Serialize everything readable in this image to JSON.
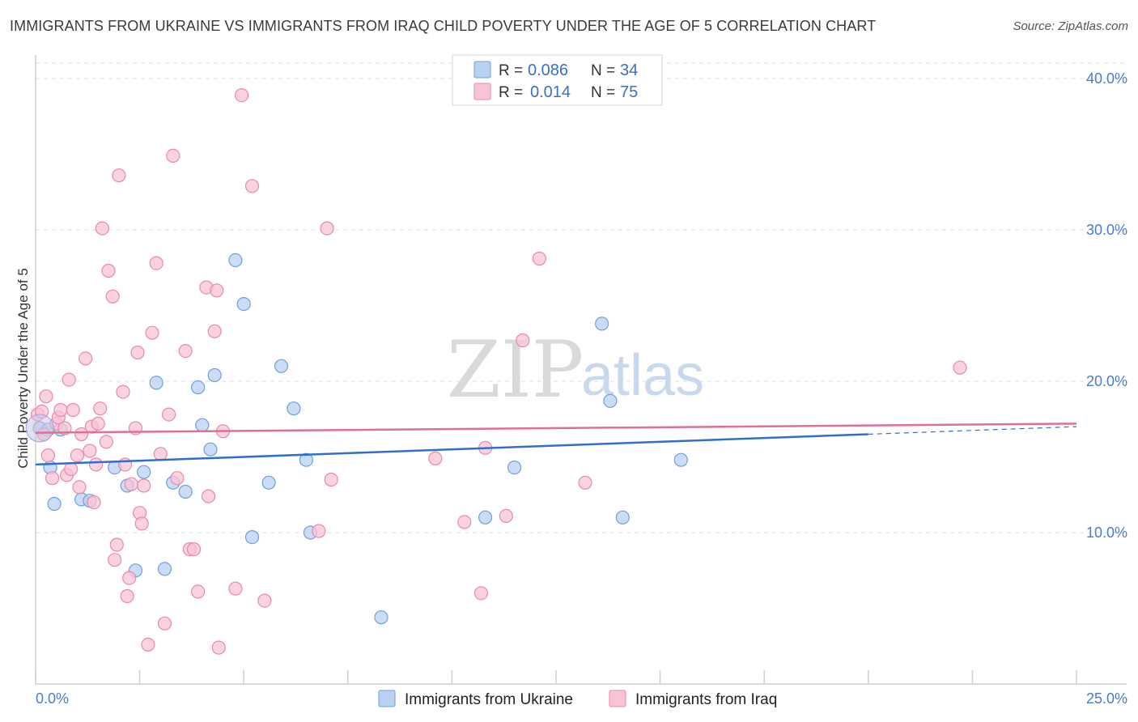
{
  "chart_data": {
    "type": "scatter",
    "title": "IMMIGRANTS FROM UKRAINE VS IMMIGRANTS FROM IRAQ CHILD POVERTY UNDER THE AGE OF 5 CORRELATION CHART",
    "source": "Source: ZipAtlas.com",
    "xlabel": "",
    "ylabel": "Child Poverty Under the Age of 5",
    "xlim": [
      0,
      25
    ],
    "ylim": [
      0,
      40
    ],
    "x_tick_labels": {
      "min": "0.0%",
      "max": "25.0%"
    },
    "y_ticks": [
      {
        "value": 10,
        "label": "10.0%"
      },
      {
        "value": 20,
        "label": "20.0%"
      },
      {
        "value": 30,
        "label": "30.0%"
      },
      {
        "value": 40,
        "label": "40.0%"
      }
    ],
    "watermark": {
      "zip": "ZIP",
      "atlas": "atlas"
    },
    "stats_legend": [
      {
        "r_label": "R = ",
        "r_value": "0.086",
        "n_label": "N = ",
        "n_value": "34"
      },
      {
        "r_label": "R = ",
        "r_value": "0.014",
        "n_label": "N = ",
        "n_value": "75"
      }
    ],
    "series": [
      {
        "name": "Immigrants from Ukraine",
        "color": "#6f9fdc",
        "fill": "#b9d2f3",
        "trend": {
          "x0": 0,
          "y0": 14.5,
          "x1": 20,
          "y1": 16.5,
          "dash_to_x": 25,
          "dash_to_y": 17.0,
          "color": "#2f6fcc"
        },
        "points": [
          [
            0.1,
            16.9
          ],
          [
            0.3,
            16.8
          ],
          [
            0.35,
            14.3
          ],
          [
            0.45,
            11.9
          ],
          [
            0.6,
            16.8
          ],
          [
            1.1,
            12.2
          ],
          [
            1.3,
            12.1
          ],
          [
            1.9,
            14.3
          ],
          [
            2.2,
            13.1
          ],
          [
            2.4,
            7.5
          ],
          [
            2.6,
            14.0
          ],
          [
            2.9,
            19.9
          ],
          [
            3.1,
            7.6
          ],
          [
            3.3,
            13.3
          ],
          [
            3.6,
            12.7
          ],
          [
            3.9,
            19.6
          ],
          [
            4.0,
            17.1
          ],
          [
            4.2,
            15.5
          ],
          [
            4.3,
            20.4
          ],
          [
            4.8,
            28.0
          ],
          [
            5.0,
            25.1
          ],
          [
            5.2,
            9.7
          ],
          [
            5.6,
            13.3
          ],
          [
            5.9,
            21.0
          ],
          [
            6.2,
            18.2
          ],
          [
            6.5,
            14.8
          ],
          [
            6.6,
            10.0
          ],
          [
            8.3,
            4.4
          ],
          [
            10.8,
            11.0
          ],
          [
            11.5,
            14.3
          ],
          [
            13.6,
            23.8
          ],
          [
            13.8,
            18.7
          ],
          [
            14.1,
            11.0
          ],
          [
            15.5,
            14.8
          ]
        ]
      },
      {
        "name": "Immigrants from Iraq",
        "color": "#e889aa",
        "fill": "#f8c3d5",
        "trend": {
          "x0": 0,
          "y0": 16.6,
          "x1": 25,
          "y1": 17.2,
          "color": "#e0708f"
        },
        "points": [
          [
            0.05,
            17.8
          ],
          [
            0.15,
            18.0
          ],
          [
            0.2,
            16.5
          ],
          [
            0.25,
            19.0
          ],
          [
            0.3,
            15.1
          ],
          [
            0.4,
            13.6
          ],
          [
            0.5,
            17.2
          ],
          [
            0.55,
            17.6
          ],
          [
            0.6,
            18.1
          ],
          [
            0.7,
            16.9
          ],
          [
            0.75,
            13.8
          ],
          [
            0.8,
            20.1
          ],
          [
            0.85,
            14.2
          ],
          [
            0.9,
            18.1
          ],
          [
            1.0,
            15.1
          ],
          [
            1.05,
            13.0
          ],
          [
            1.1,
            16.5
          ],
          [
            1.2,
            21.5
          ],
          [
            1.3,
            15.4
          ],
          [
            1.35,
            17.0
          ],
          [
            1.4,
            12.0
          ],
          [
            1.45,
            14.5
          ],
          [
            1.5,
            17.2
          ],
          [
            1.55,
            18.2
          ],
          [
            1.6,
            30.1
          ],
          [
            1.7,
            16.0
          ],
          [
            1.75,
            27.3
          ],
          [
            1.85,
            25.6
          ],
          [
            1.9,
            8.2
          ],
          [
            1.95,
            9.2
          ],
          [
            2.0,
            33.6
          ],
          [
            2.1,
            19.3
          ],
          [
            2.15,
            14.5
          ],
          [
            2.2,
            5.8
          ],
          [
            2.25,
            7.0
          ],
          [
            2.3,
            13.2
          ],
          [
            2.4,
            16.9
          ],
          [
            2.45,
            21.9
          ],
          [
            2.5,
            11.3
          ],
          [
            2.55,
            10.6
          ],
          [
            2.6,
            13.1
          ],
          [
            2.7,
            2.6
          ],
          [
            2.8,
            23.2
          ],
          [
            2.9,
            27.8
          ],
          [
            3.0,
            15.2
          ],
          [
            3.1,
            4.0
          ],
          [
            3.2,
            17.8
          ],
          [
            3.3,
            34.9
          ],
          [
            3.4,
            13.6
          ],
          [
            3.6,
            22.0
          ],
          [
            3.7,
            8.9
          ],
          [
            3.8,
            8.9
          ],
          [
            3.9,
            6.1
          ],
          [
            4.1,
            26.2
          ],
          [
            4.15,
            12.4
          ],
          [
            4.3,
            23.3
          ],
          [
            4.35,
            26.0
          ],
          [
            4.4,
            2.4
          ],
          [
            4.5,
            16.7
          ],
          [
            4.8,
            6.3
          ],
          [
            4.95,
            38.9
          ],
          [
            5.2,
            32.9
          ],
          [
            5.5,
            5.5
          ],
          [
            6.8,
            10.1
          ],
          [
            7.0,
            30.1
          ],
          [
            7.1,
            13.5
          ],
          [
            9.6,
            14.9
          ],
          [
            10.3,
            10.7
          ],
          [
            10.7,
            6.0
          ],
          [
            10.8,
            15.6
          ],
          [
            11.3,
            11.1
          ],
          [
            11.7,
            22.7
          ],
          [
            12.1,
            28.1
          ],
          [
            13.2,
            13.3
          ],
          [
            22.2,
            20.9
          ]
        ]
      }
    ]
  }
}
